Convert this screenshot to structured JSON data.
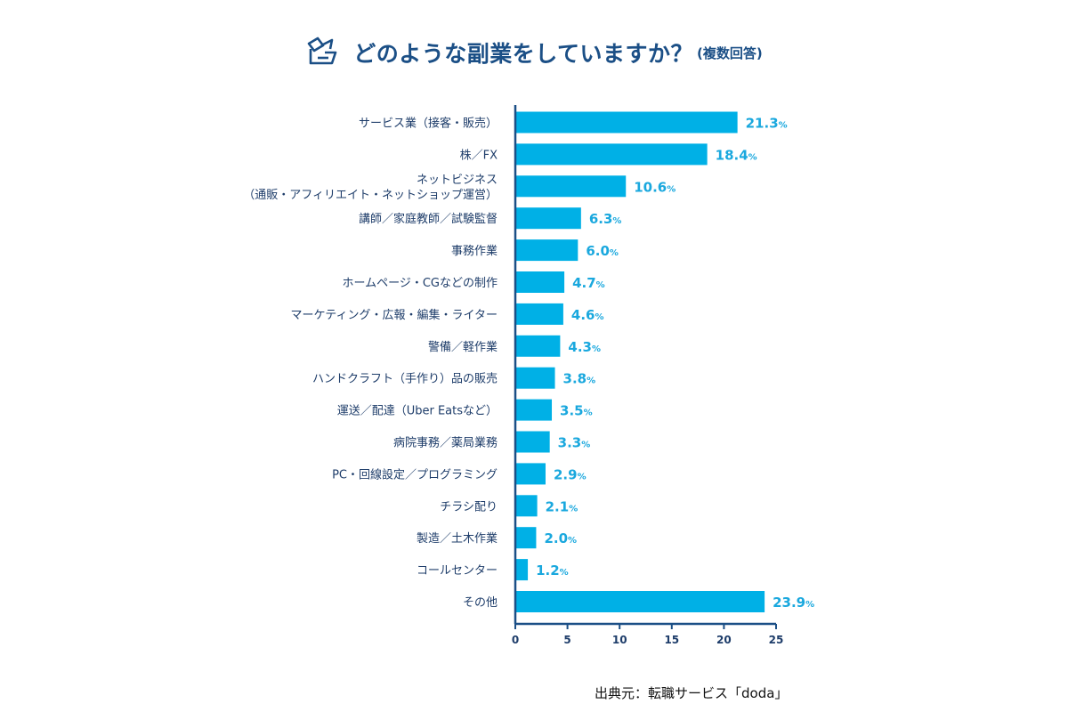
{
  "header": {
    "title": "どのような副業をしていますか？",
    "subtitle": "(複数回答)",
    "icon": "book-flag-icon"
  },
  "source": "出典元：転職サービス「doda」",
  "colors": {
    "bar": "#00b0e6",
    "value": "#1aa8de",
    "axis": "#1b4f86",
    "text": "#1e3d6a"
  },
  "chart_data": {
    "type": "bar",
    "orientation": "horizontal",
    "categories": [
      [
        "サービス業（接客・販売）"
      ],
      [
        "株／FX"
      ],
      [
        "ネットビジネス",
        "（通販・アフィリエイト・ネットショップ運営）"
      ],
      [
        "講師／家庭教師／試験監督"
      ],
      [
        "事務作業"
      ],
      [
        "ホームページ・CGなどの制作"
      ],
      [
        "マーケティング・広報・編集・ライター"
      ],
      [
        "警備／軽作業"
      ],
      [
        "ハンドクラフト（手作り）品の販売"
      ],
      [
        "運送／配達（Uber Eatsなど）"
      ],
      [
        "病院事務／薬局業務"
      ],
      [
        "PC・回線設定／プログラミング"
      ],
      [
        "チラシ配り"
      ],
      [
        "製造／土木作業"
      ],
      [
        "コールセンター"
      ],
      [
        "その他"
      ]
    ],
    "values": [
      21.3,
      18.4,
      10.6,
      6.3,
      6.0,
      4.7,
      4.6,
      4.3,
      3.8,
      3.5,
      3.3,
      2.9,
      2.1,
      2.0,
      1.2,
      23.9
    ],
    "value_labels": [
      "21.3",
      "18.4",
      "10.6",
      "6.3",
      "6.0",
      "4.7",
      "4.6",
      "4.3",
      "3.8",
      "3.5",
      "3.3",
      "2.9",
      "2.1",
      "2.0",
      "1.2",
      "23.9"
    ],
    "value_suffix": "%",
    "xlim": [
      0,
      25
    ],
    "ticks": [
      0,
      5,
      10,
      15,
      20,
      25
    ],
    "grid": false
  }
}
